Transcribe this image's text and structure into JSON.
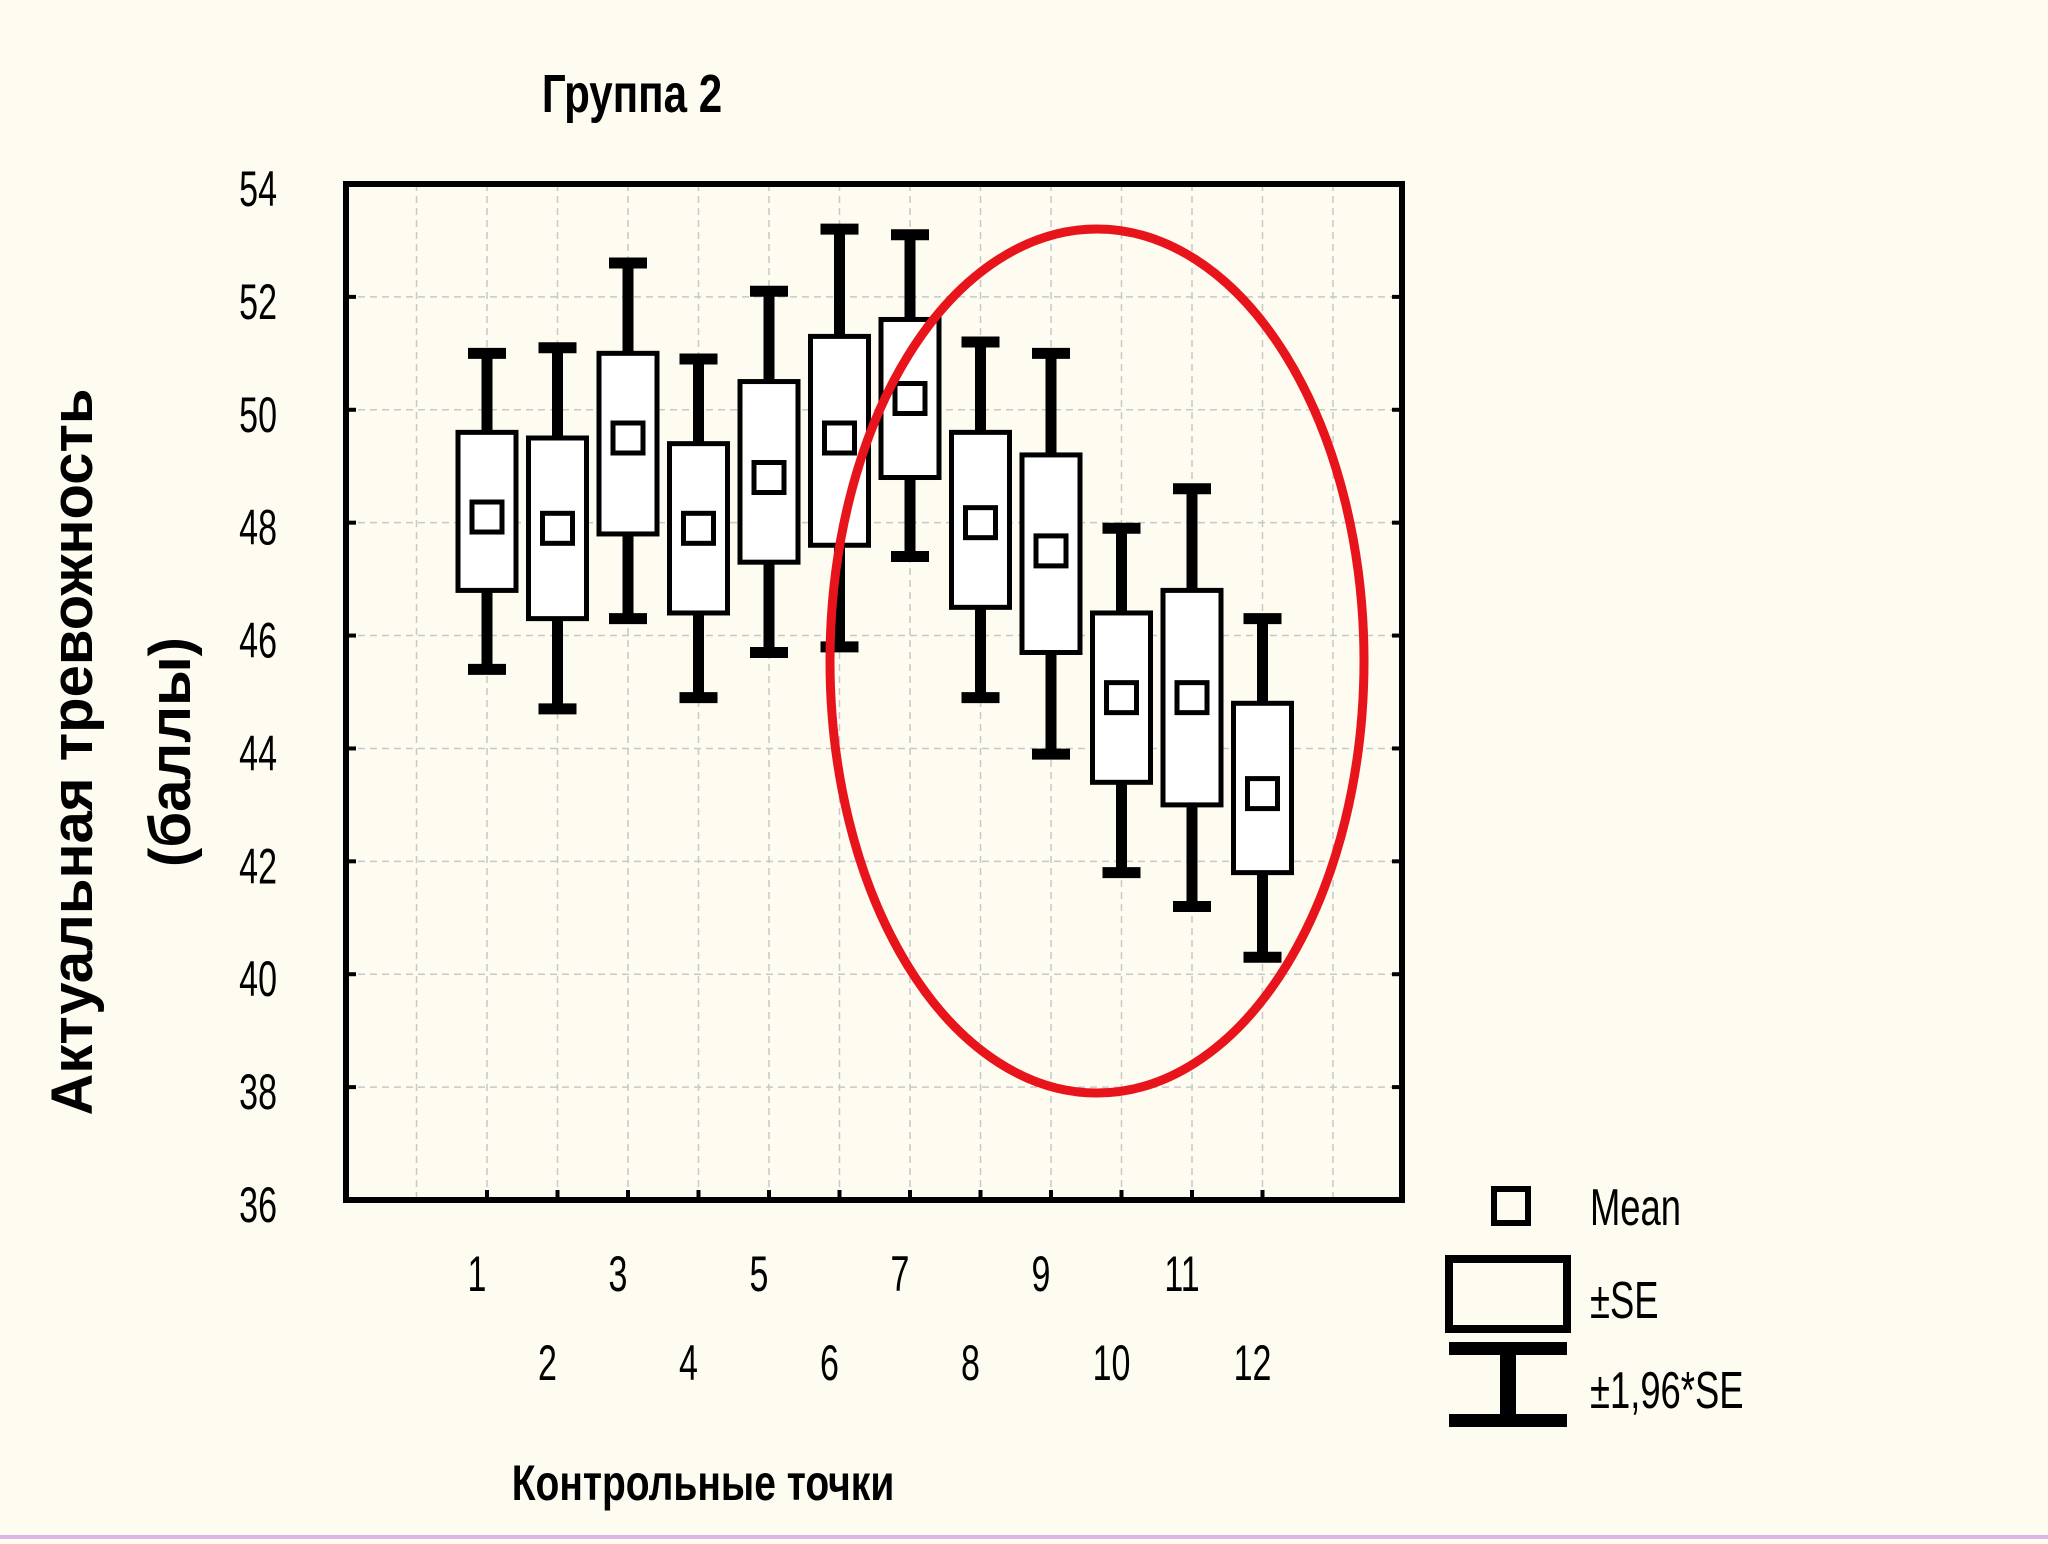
{
  "chart_data": {
    "type": "box",
    "title": "Группа 2",
    "xlabel": "Контрольные точки",
    "ylabel_line1": "Актуальная тревожность",
    "ylabel_line2": "(баллы)",
    "ylim": [
      36,
      54
    ],
    "yticks": [
      "36",
      "38",
      "40",
      "42",
      "44",
      "46",
      "48",
      "50",
      "52",
      "54"
    ],
    "categories": [
      "1",
      "2",
      "3",
      "4",
      "5",
      "6",
      "7",
      "8",
      "9",
      "10",
      "11",
      "12"
    ],
    "mean": [
      48.1,
      47.9,
      49.5,
      47.9,
      48.8,
      49.5,
      50.2,
      48.0,
      47.5,
      44.9,
      44.9,
      43.2
    ],
    "se_low": [
      46.8,
      46.3,
      47.8,
      46.4,
      47.3,
      47.6,
      48.8,
      46.5,
      45.7,
      43.4,
      43.0,
      41.8
    ],
    "se_high": [
      49.6,
      49.5,
      51.0,
      49.4,
      50.5,
      51.3,
      51.6,
      49.6,
      49.2,
      46.4,
      46.8,
      44.8
    ],
    "ci_low": [
      45.4,
      44.7,
      46.3,
      44.9,
      45.7,
      45.8,
      47.4,
      44.9,
      43.9,
      41.8,
      41.2,
      40.3
    ],
    "ci_high": [
      51.0,
      51.1,
      52.6,
      50.9,
      52.1,
      53.2,
      53.1,
      51.2,
      51.0,
      47.9,
      48.6,
      46.3
    ],
    "legend": {
      "position": "bottom-right",
      "mean_label": "Mean",
      "se_label": "±SE",
      "ci_label": "±1,96*SE"
    },
    "grid": true,
    "highlight": {
      "shape": "ellipse",
      "color": "#e8141b",
      "covers_points": [
        "7",
        "8",
        "9",
        "10",
        "11",
        "12"
      ]
    }
  }
}
